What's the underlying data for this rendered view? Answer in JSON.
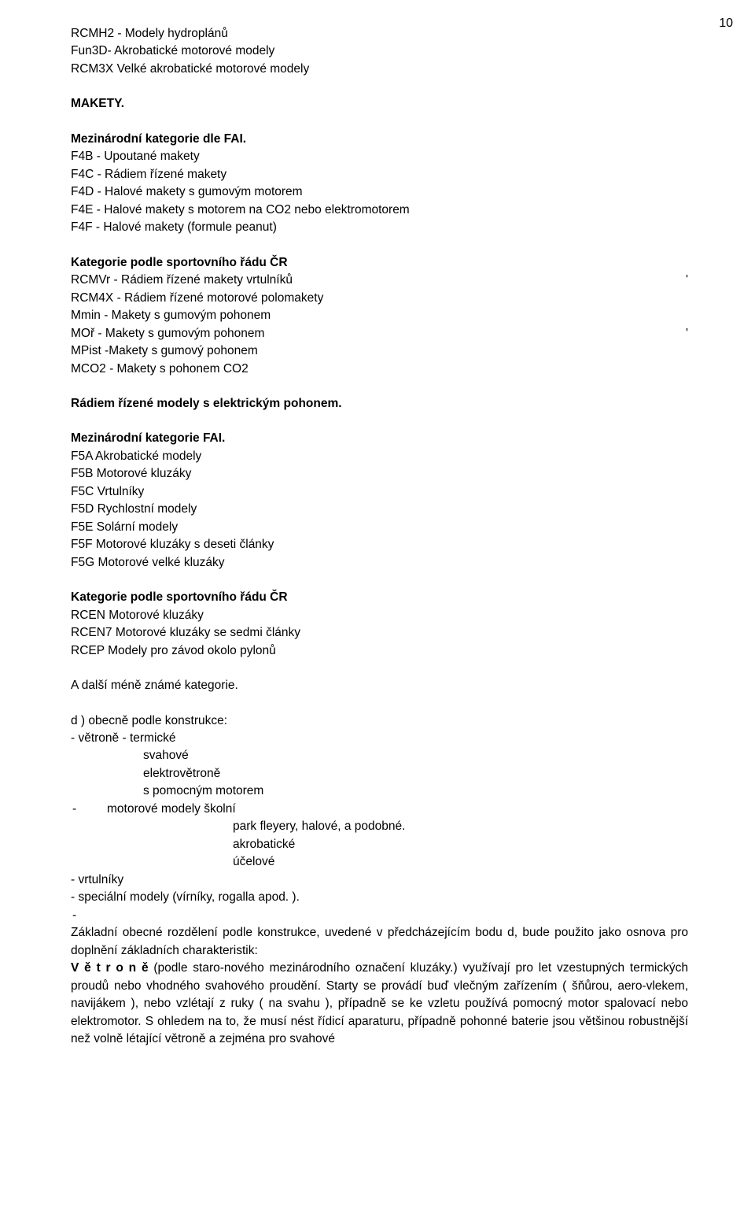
{
  "page": {
    "number": "10"
  },
  "s1": {
    "l1": "RCMH2 - Modely hydroplánů",
    "l2": "Fun3D- Akrobatické motorové modely",
    "l3": "RCM3X Velké akrobatické motorové modely"
  },
  "s2": {
    "heading": "MAKETY."
  },
  "s3": {
    "heading": "Mezinárodní kategorie dle FAI.",
    "l1": "F4B - Upoutané makety",
    "l2": "F4C -  Rádiem řízené makety",
    "l3": "F4D - Halové makety s gumovým motorem",
    "l4": "F4E - Halové makety s motorem na CO2 nebo elektromotorem",
    "l5": "F4F - Halové makety (formule peanut)"
  },
  "s4": {
    "heading": "Kategorie podle sportovního řádu ČR",
    "l1": "RCMVr - Rádiem řízené makety vrtulníků",
    "mark1": "'",
    "l2": "RCM4X - Rádiem řízené motorové polomakety",
    "l3": "Mmin - Makety s gumovým pohonem",
    "l4": "MOř - Makety s gumovým pohonem",
    "mark2": "'",
    "l5": "MPist -Makety s gumový pohonem",
    "l6": "MCO2 - Makety s pohonem CO2"
  },
  "s5": {
    "heading": "Rádiem řízené modely s elektrickým pohonem."
  },
  "s6": {
    "heading": "Mezinárodní kategorie FAI.",
    "l1": "F5A Akrobatické modely",
    "l2": "F5B Motorové kluzáky",
    "l3": "F5C Vrtulníky",
    "l4": "F5D Rychlostní modely",
    "l5": "F5E Solární modely",
    "l6": "F5F Motorové kluzáky s deseti články",
    "l7": "F5G Motorové velké kluzáky"
  },
  "s7": {
    "heading": "Kategorie podle sportovního řádu ČR",
    "l1": "RCEN Motorové kluzáky",
    "l2": "RCEN7 Motorové kluzáky se sedmi články",
    "l3": "RCEP Modely pro závod okolo pylonů"
  },
  "s8": {
    "l1": "A další méně známé kategorie."
  },
  "s9": {
    "l1": "d ) obecně podle konstrukce:",
    "l2": "- větroně - termické",
    "l3": "svahové",
    "l4": "elektrovětroně",
    "l5": "s pomocným motorem",
    "dash": "-",
    "l6": "motorové modely školní",
    "l7": "park fleyery, halové, a podobné.",
    "l8": "akrobatické",
    "l9": "účelové",
    "l10": "- vrtulníky",
    "l11": " - speciální modely (vírníky, rogalla apod. ).",
    "l12dash": "-"
  },
  "s10": {
    "l1": "Základní obecné rozdělení podle konstrukce, uvedené v předcházejícím bodu d, bude použito jako osnova pro doplnění základních charakteristik:",
    "boldpart": "V ě t r o n ě ",
    "rest": "(podle staro-nového mezinárodního označení kluzáky.)  využívají pro let vzestupných termických proudů nebo vhodného svahového proudění. Starty se provádí buď vlečným zařízením ( šňůrou, aero-vlekem, navijákem ), nebo vzlétají z ruky ( na svahu ), případně se ke vzletu používá pomocný motor spalovací nebo elektromotor. S ohledem na to, že musí nést  řídicí aparaturu, případně pohonné baterie jsou většinou  robustnější než volně létající větroně a zejména pro svahové"
  }
}
